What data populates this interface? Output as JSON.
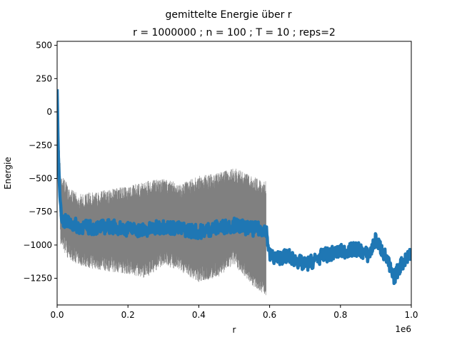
{
  "chart_data": {
    "type": "line",
    "title": "gemittelte Energie über r",
    "subtitle": "r = 1000000 ; n = 100 ; T = 10 ; reps=2",
    "xlabel": "r",
    "ylabel": "Energie",
    "x_offset_label": "1e6",
    "xlim": [
      0,
      1000000
    ],
    "ylim": [
      -1450,
      530
    ],
    "x_ticks": [
      0,
      200000,
      400000,
      600000,
      800000,
      1000000
    ],
    "x_tick_labels": [
      "0.0",
      "0.2",
      "0.4",
      "0.6",
      "0.8",
      "1.0"
    ],
    "y_ticks": [
      500,
      250,
      0,
      -250,
      -500,
      -750,
      -1000,
      -1250
    ],
    "y_tick_labels": [
      "500",
      "250",
      "0",
      "−250",
      "−500",
      "−750",
      "−1000",
      "−1250"
    ],
    "grid": false,
    "series": [
      {
        "color": "#808080",
        "style": "thin-noisy-band",
        "x": [
          0,
          10000,
          30000,
          60000,
          100000,
          150000,
          200000,
          250000,
          300000,
          350000,
          400000,
          450000,
          500000,
          550000,
          590000,
          600000
        ],
        "upper": [
          180,
          -450,
          -550,
          -620,
          -600,
          -580,
          -560,
          -520,
          -500,
          -540,
          -480,
          -460,
          -420,
          -480,
          -520,
          null
        ],
        "lower": [
          -250,
          -1000,
          -1100,
          -1150,
          -1180,
          -1200,
          -1220,
          -1250,
          -1150,
          -1200,
          -1280,
          -1250,
          -1150,
          -1300,
          -1380,
          null
        ]
      },
      {
        "color": "#1f77b4",
        "style": "thick-line",
        "x": [
          0,
          3000,
          8000,
          15000,
          30000,
          60000,
          100000,
          150000,
          200000,
          250000,
          300000,
          350000,
          400000,
          450000,
          500000,
          550000,
          590000,
          600000,
          620000,
          650000,
          700000,
          750000,
          800000,
          850000,
          880000,
          900000,
          930000,
          950000,
          970000,
          1000000
        ],
        "values": [
          170,
          -300,
          -650,
          -820,
          -830,
          -860,
          -870,
          -860,
          -880,
          -890,
          -860,
          -880,
          -900,
          -870,
          -850,
          -880,
          -880,
          -1080,
          -1100,
          -1080,
          -1150,
          -1080,
          -1050,
          -1030,
          -1080,
          -960,
          -1100,
          -1250,
          -1150,
          -1050
        ]
      }
    ]
  }
}
